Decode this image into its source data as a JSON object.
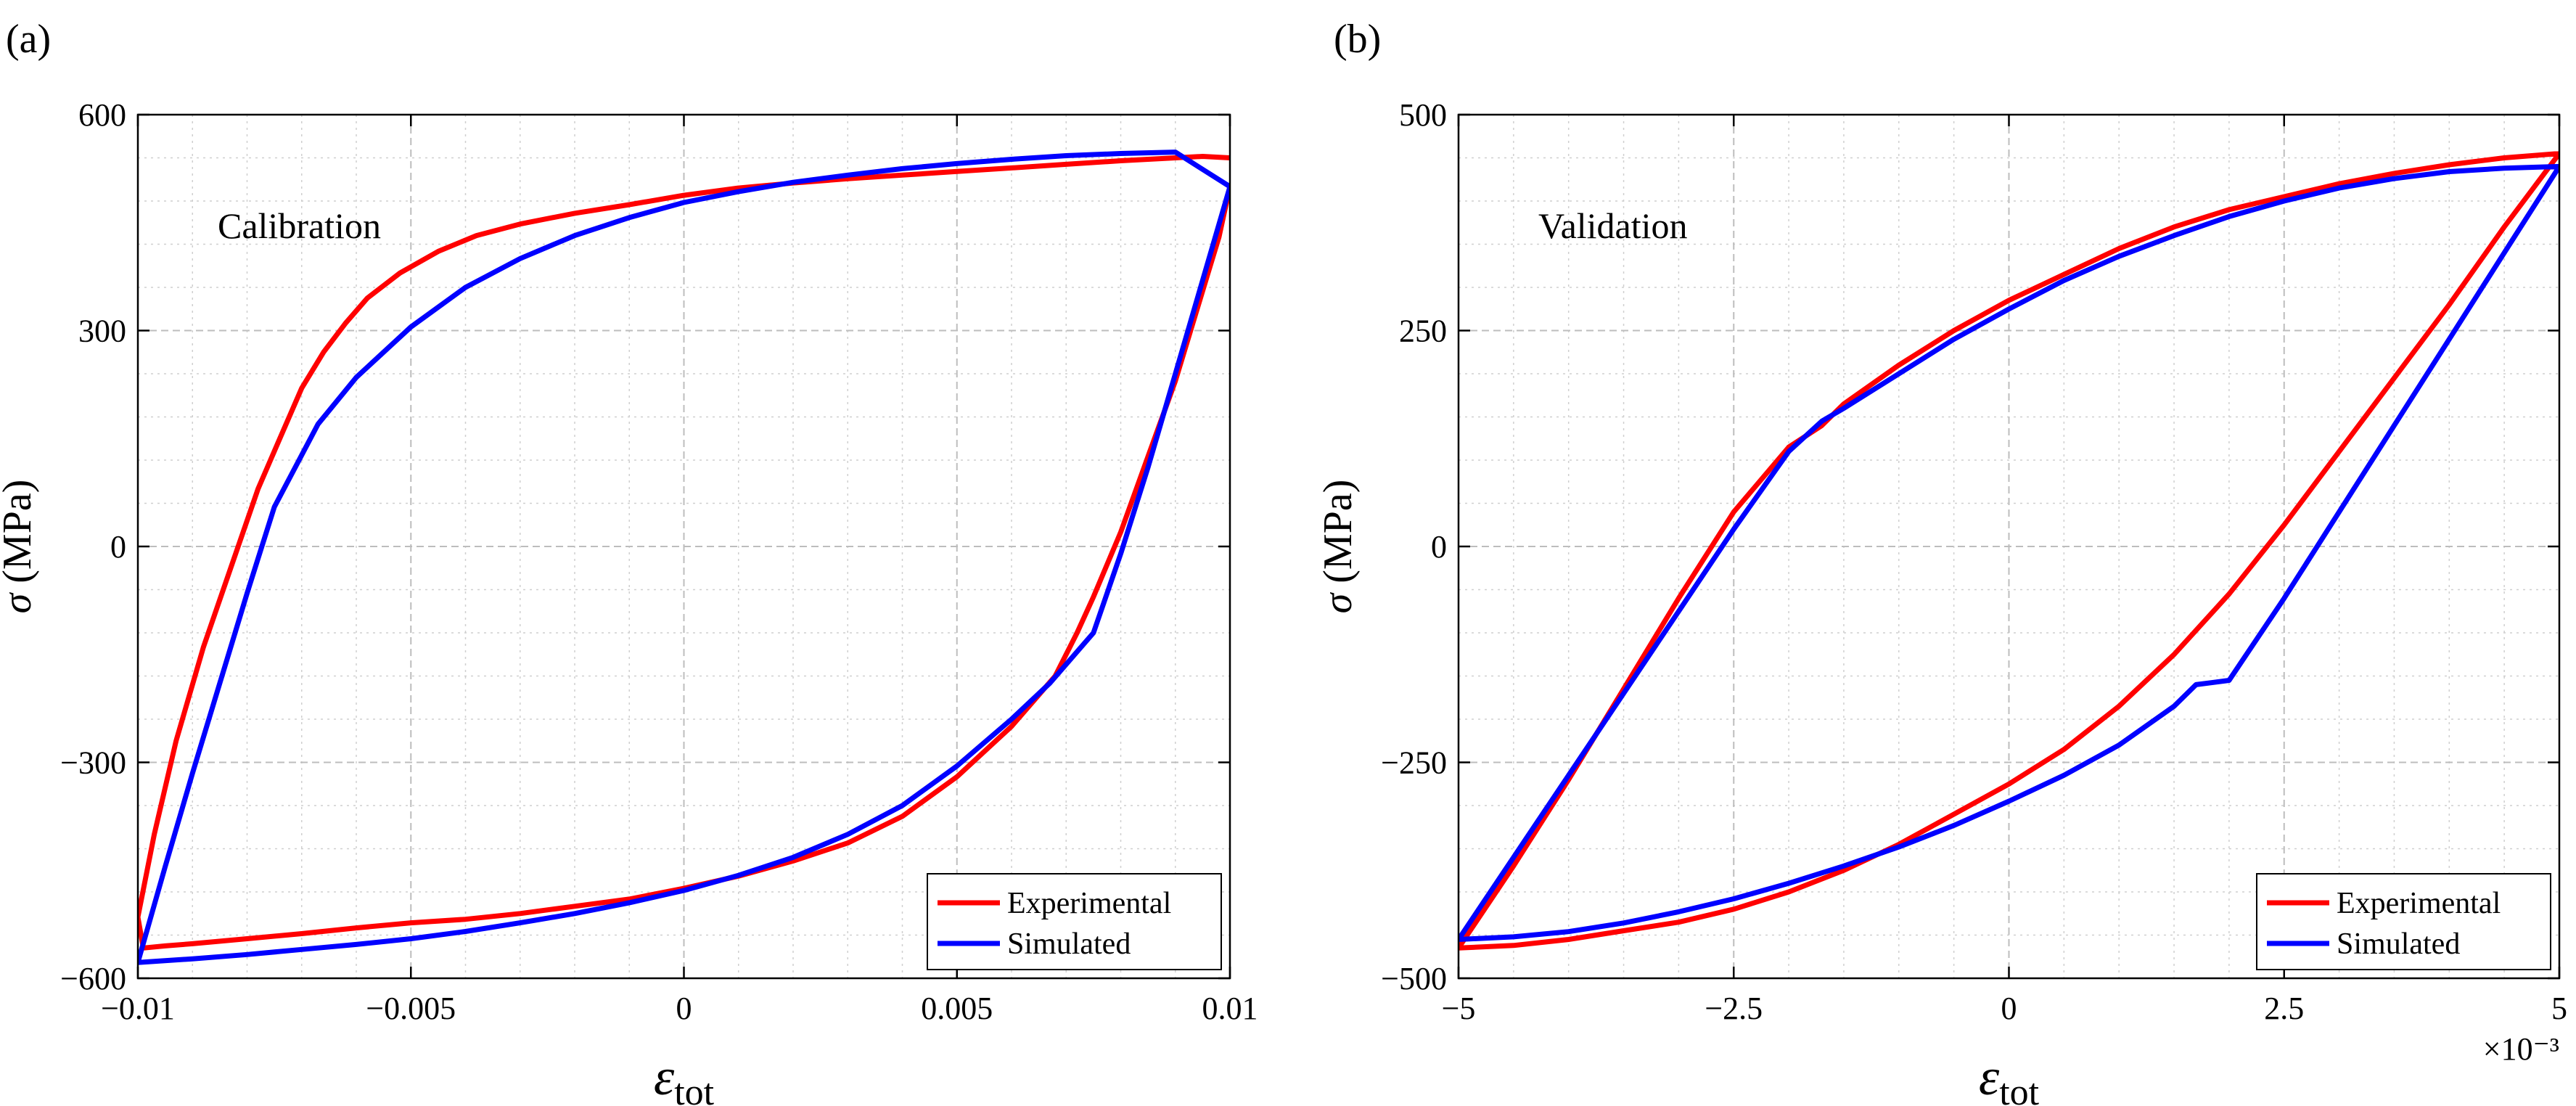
{
  "chart_data": [
    {
      "type": "line",
      "panel_label": "(a)",
      "annotation": "Calibration",
      "xlabel": {
        "symbol": "ε",
        "subscript": "tot"
      },
      "ylabel": {
        "symbol": "σ",
        "unit": " (MPa)"
      },
      "xlim": [
        -0.01,
        0.01
      ],
      "ylim": [
        -600,
        600
      ],
      "xticks": [
        -0.01,
        -0.005,
        0,
        0.005,
        0.01
      ],
      "xtick_labels": [
        "−0.01",
        "−0.005",
        "0",
        "0.005",
        "0.01"
      ],
      "yticks": [
        -600,
        -300,
        0,
        300,
        600
      ],
      "ytick_labels": [
        "−600",
        "−300",
        "0",
        "300",
        "600"
      ],
      "x_exponent": "",
      "grid": true,
      "legend": {
        "position": "bottom-right",
        "entries": [
          "Experimental",
          "Simulated"
        ]
      },
      "series": [
        {
          "name": "Experimental",
          "color": "#ff0000",
          "x": [
            0.01,
            0.0098,
            0.0094,
            0.009,
            0.0085,
            0.008,
            0.0075,
            0.0072,
            0.0068,
            0.0064,
            0.006,
            0.0056,
            0.005,
            0.004,
            0.003,
            0.002,
            0.001,
            0.0,
            -0.001,
            -0.002,
            -0.003,
            -0.004,
            -0.005,
            -0.006,
            -0.007,
            -0.008,
            -0.009,
            -0.0095,
            -0.0099,
            -0.01,
            -0.0097,
            -0.0093,
            -0.0088,
            -0.0083,
            -0.0078,
            -0.0074,
            -0.007,
            -0.0066,
            -0.0062,
            -0.0058,
            -0.0052,
            -0.0045,
            -0.0038,
            -0.003,
            -0.002,
            -0.001,
            0.0,
            0.001,
            0.002,
            0.003,
            0.004,
            0.005,
            0.006,
            0.007,
            0.008,
            0.009,
            0.0095,
            0.01
          ],
          "y": [
            500,
            430,
            330,
            230,
            125,
            20,
            -70,
            -120,
            -180,
            -215,
            -250,
            -278,
            -320,
            -375,
            -412,
            -437,
            -458,
            -475,
            -490,
            -500,
            -510,
            -518,
            -523,
            -530,
            -538,
            -545,
            -552,
            -555,
            -558,
            -515,
            -400,
            -270,
            -140,
            -30,
            80,
            150,
            220,
            270,
            310,
            345,
            380,
            410,
            432,
            448,
            463,
            475,
            488,
            498,
            505,
            511,
            516,
            521,
            526,
            531,
            536,
            540,
            542,
            540
          ]
        },
        {
          "name": "Simulated",
          "color": "#0000ff",
          "x": [
            0.01,
            0.0095,
            0.009,
            0.0085,
            0.008,
            0.0075,
            0.0067,
            0.006,
            0.005,
            0.004,
            0.003,
            0.002,
            0.001,
            0.0,
            -0.001,
            -0.002,
            -0.003,
            -0.004,
            -0.005,
            -0.006,
            -0.007,
            -0.008,
            -0.009,
            -0.01,
            -0.0095,
            -0.009,
            -0.0085,
            -0.008,
            -0.0075,
            -0.0067,
            -0.006,
            -0.005,
            -0.004,
            -0.003,
            -0.002,
            -0.001,
            0.0,
            0.001,
            0.002,
            0.003,
            0.004,
            0.005,
            0.006,
            0.007,
            0.008,
            0.009,
            0.01
          ],
          "y": [
            500,
            370,
            240,
            110,
            -10,
            -120,
            -190,
            -240,
            -305,
            -360,
            -400,
            -432,
            -457,
            -478,
            -495,
            -510,
            -523,
            -535,
            -545,
            -553,
            -560,
            -567,
            -573,
            -578,
            -445,
            -315,
            -190,
            -65,
            55,
            170,
            235,
            305,
            360,
            400,
            432,
            457,
            478,
            493,
            506,
            516,
            525,
            532,
            538,
            543,
            546,
            548,
            500
          ]
        }
      ]
    },
    {
      "type": "line",
      "panel_label": "(b)",
      "annotation": "Validation",
      "xlabel": {
        "symbol": "ε",
        "subscript": "tot"
      },
      "ylabel": {
        "symbol": "σ",
        "unit": " (MPa)"
      },
      "xlim": [
        -5,
        5
      ],
      "ylim": [
        -500,
        500
      ],
      "xticks": [
        -5,
        -2.5,
        0,
        2.5,
        5
      ],
      "xtick_labels": [
        "−5",
        "−2.5",
        "0",
        "2.5",
        "5"
      ],
      "yticks": [
        -500,
        -250,
        0,
        250,
        500
      ],
      "ytick_labels": [
        "−500",
        "−250",
        "0",
        "250",
        "500"
      ],
      "x_exponent": "×10⁻³",
      "grid": true,
      "legend": {
        "position": "bottom-right",
        "entries": [
          "Experimental",
          "Simulated"
        ]
      },
      "series": [
        {
          "name": "Experimental",
          "color": "#ff0000",
          "x": [
            5.0,
            4.5,
            4.0,
            3.5,
            3.0,
            2.5,
            2.0,
            1.5,
            1.0,
            0.5,
            0.0,
            -0.5,
            -1.0,
            -1.5,
            -2.0,
            -2.5,
            -3.0,
            -3.5,
            -4.0,
            -4.5,
            -5.0,
            -4.5,
            -4.0,
            -3.5,
            -3.0,
            -2.5,
            -2.0,
            -1.7,
            -1.5,
            -1.0,
            -0.5,
            0.0,
            0.5,
            1.0,
            1.5,
            2.0,
            2.5,
            3.0,
            3.5,
            4.0,
            4.5,
            5.0
          ],
          "y": [
            455,
            370,
            280,
            195,
            110,
            25,
            -55,
            -125,
            -185,
            -235,
            -275,
            -310,
            -345,
            -375,
            -400,
            -420,
            -435,
            -445,
            -455,
            -462,
            -465,
            -370,
            -270,
            -165,
            -60,
            40,
            115,
            140,
            165,
            210,
            250,
            285,
            315,
            345,
            370,
            390,
            405,
            420,
            432,
            442,
            450,
            455
          ]
        },
        {
          "name": "Simulated",
          "color": "#0000ff",
          "x": [
            5.0,
            4.5,
            4.0,
            3.5,
            3.0,
            2.5,
            2.0,
            1.7,
            1.5,
            1.0,
            0.5,
            0.0,
            -0.5,
            -1.0,
            -1.5,
            -2.0,
            -2.5,
            -3.0,
            -3.5,
            -4.0,
            -4.5,
            -5.0,
            -4.5,
            -4.0,
            -3.5,
            -3.0,
            -2.5,
            -2.0,
            -1.7,
            -1.5,
            -1.0,
            -0.5,
            0.0,
            0.5,
            1.0,
            1.5,
            2.0,
            2.5,
            3.0,
            3.5,
            4.0,
            4.5,
            5.0
          ],
          "y": [
            440,
            340,
            240,
            140,
            40,
            -60,
            -155,
            -160,
            -185,
            -230,
            -265,
            -295,
            -323,
            -348,
            -370,
            -390,
            -408,
            -423,
            -436,
            -446,
            -452,
            -455,
            -360,
            -265,
            -170,
            -75,
            20,
            110,
            145,
            160,
            200,
            240,
            275,
            308,
            336,
            360,
            382,
            400,
            415,
            426,
            434,
            438,
            440
          ]
        }
      ]
    }
  ]
}
